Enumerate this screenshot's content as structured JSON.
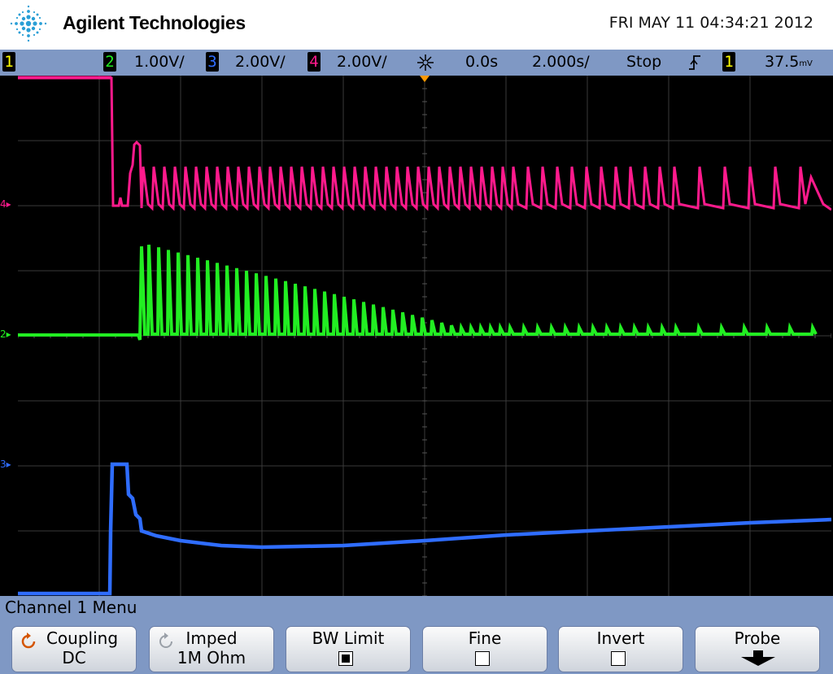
{
  "header": {
    "brand": "Agilent Technologies",
    "datetime": "FRI MAY 11 04:34:21 2012"
  },
  "status": {
    "ch1_number": "1",
    "ch2_number": "2",
    "ch2_scale": "1.00V/",
    "ch3_number": "3",
    "ch3_scale": "2.00V/",
    "ch4_number": "4",
    "ch4_scale": "2.00V/",
    "delay": "0.0s",
    "timebase": "2.000s/",
    "run_state": "Stop",
    "trigger_edge_icon": "rising-edge-icon",
    "trigger_source": "1",
    "trigger_level": "37.5",
    "trigger_level_unit": "mV"
  },
  "markers": {
    "ch4": "4",
    "ch2": "2",
    "ch3": "3"
  },
  "colors": {
    "ch1": "#ffff00",
    "ch2": "#22ee22",
    "ch3": "#2f6dff",
    "ch4": "#ff1a8c",
    "bar": "#7f98c4"
  },
  "menu": {
    "title": "Channel 1  Menu",
    "softkeys": [
      {
        "label": "Coupling",
        "value": "DC",
        "icon": "rotate-arrow-icon"
      },
      {
        "label": "Imped",
        "value": "1M Ohm",
        "icon": "rotate-arrow-icon"
      },
      {
        "label": "BW Limit",
        "checked": true
      },
      {
        "label": "Fine",
        "checked": false
      },
      {
        "label": "Invert",
        "checked": false
      },
      {
        "label": "Probe",
        "icon": "down-arrow-icon"
      }
    ]
  }
}
